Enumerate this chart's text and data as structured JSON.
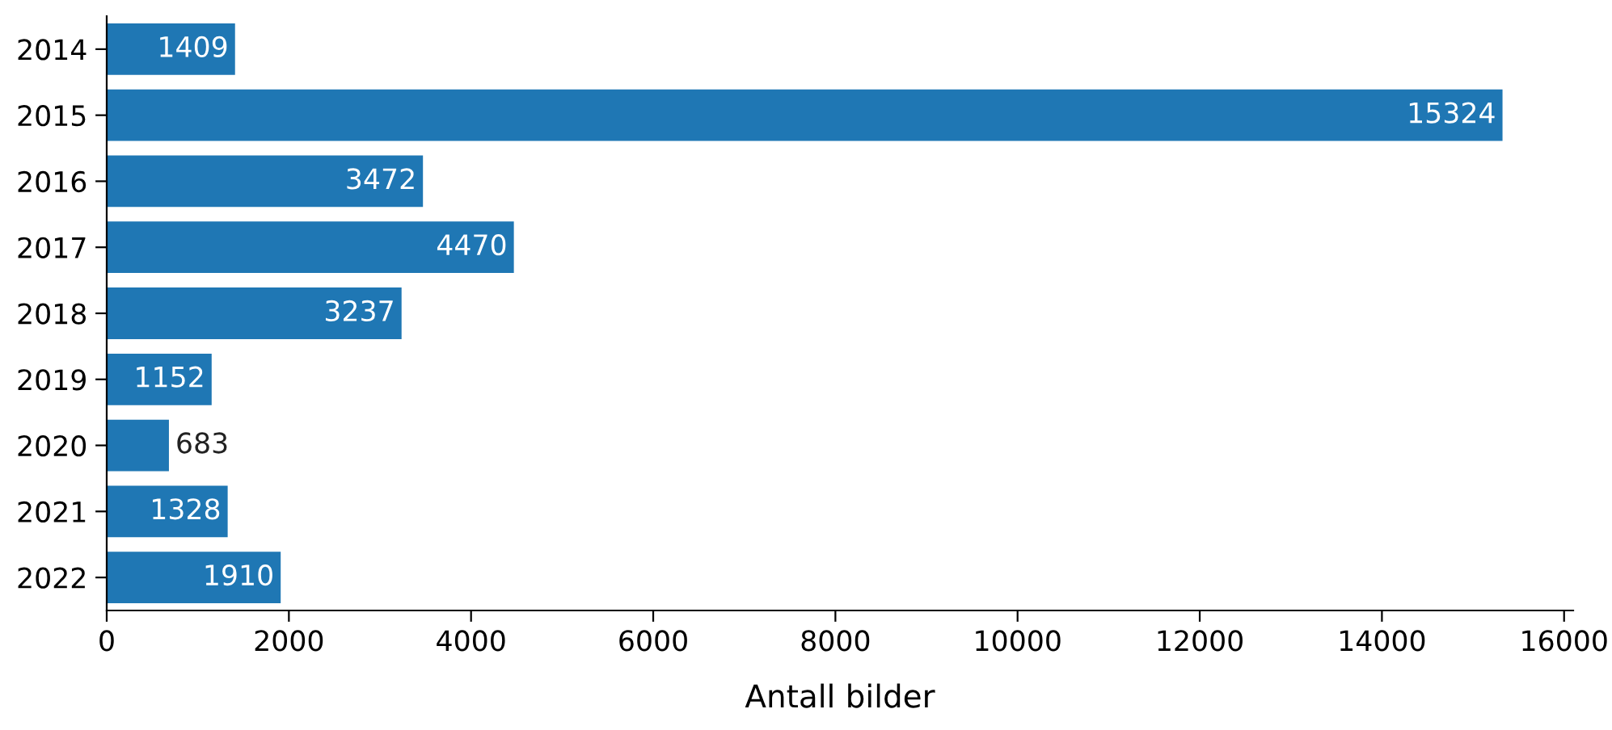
{
  "chart_data": {
    "type": "bar",
    "orientation": "horizontal",
    "xlabel": "Antall bilder",
    "categories": [
      "2014",
      "2015",
      "2016",
      "2017",
      "2018",
      "2019",
      "2020",
      "2021",
      "2022"
    ],
    "values": [
      1409,
      15324,
      3472,
      4470,
      3237,
      1152,
      683,
      1328,
      1910
    ],
    "color": "#1f77b4",
    "xlim": [
      0,
      16100
    ],
    "xticks": [
      0,
      2000,
      4000,
      6000,
      8000,
      10000,
      12000,
      14000,
      16000
    ],
    "data_labels": true,
    "grid": false,
    "legend": false
  }
}
